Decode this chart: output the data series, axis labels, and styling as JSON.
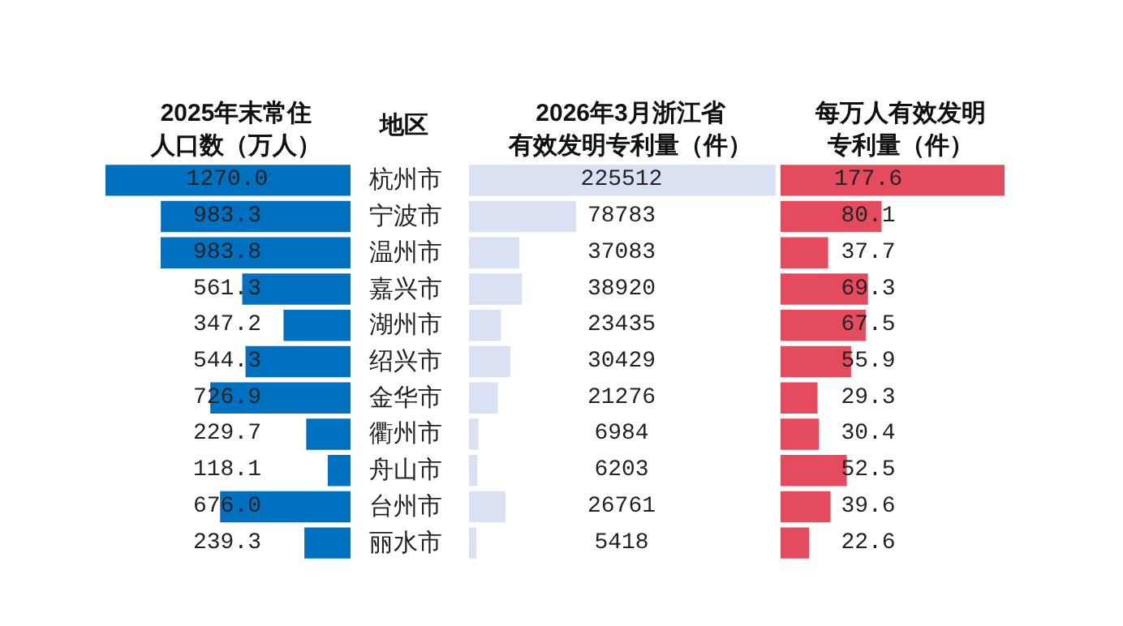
{
  "chart_data": [
    {
      "type": "bar",
      "orientation": "horizontal",
      "title": "2025年末常住",
      "subtitle": "人口数（万人）",
      "ylabel": "地区",
      "tick_labels": "y",
      "color": "#0070c0",
      "xlim": [
        1270,
        0
      ],
      "categories": [
        "杭州市",
        "宁波市",
        "温州市",
        "嘉兴市",
        "湖州市",
        "绍兴市",
        "金华市",
        "衢州市",
        "舟山市",
        "台州市",
        "丽水市"
      ],
      "values": [
        1270.0,
        983.3,
        983.8,
        561.3,
        347.2,
        544.3,
        726.9,
        229.7,
        118.1,
        676.0,
        239.3
      ],
      "value_labels": [
        "1270.0",
        "983.3",
        "983.8",
        "561.3",
        "347.2",
        "544.3",
        "726.9",
        "229.7",
        "118.1",
        "676.0",
        "239.3"
      ]
    },
    {
      "type": "bar",
      "orientation": "horizontal",
      "title": "2026年3月浙江省",
      "subtitle": "有效发明专利量（件）",
      "tick_labels": false,
      "color": "#d9e1f2",
      "xlim": [
        0,
        225512
      ],
      "values": [
        225512,
        78783,
        37083,
        38920,
        23435,
        30429,
        21276,
        6984,
        6203,
        26761,
        5418
      ],
      "data_labels": true
    },
    {
      "type": "bar",
      "orientation": "horizontal",
      "title": "每万人有效发明",
      "subtitle": "专利量（件）",
      "tick_labels": false,
      "color": "#e54b5e",
      "xlim": [
        0,
        177.6
      ],
      "values": [
        177.6,
        80.1,
        37.7,
        69.3,
        67.5,
        55.9,
        29.3,
        30.4,
        52.5,
        39.6,
        22.6
      ],
      "value_labels": [
        "177.6",
        "80.1",
        "37.7",
        "69.3",
        "67.5",
        "55.9",
        "29.3",
        "30.4",
        "52.5",
        "39.6",
        "22.6"
      ]
    }
  ]
}
